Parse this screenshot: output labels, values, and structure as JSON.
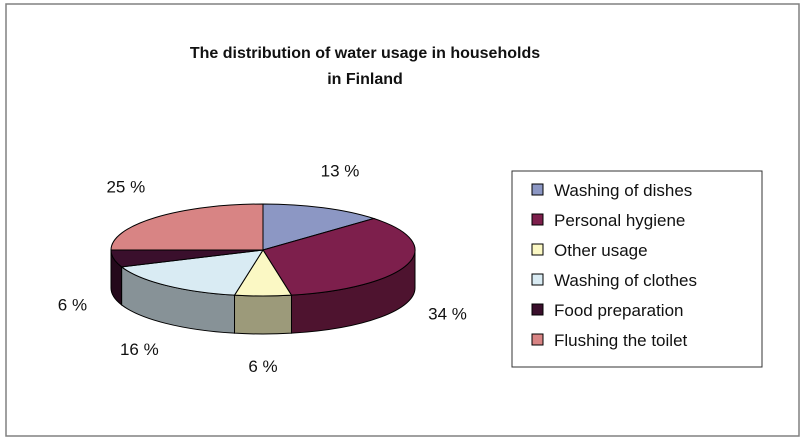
{
  "chart_data": {
    "type": "pie",
    "title_lines": [
      "The distribution of water usage in households",
      "in Finland"
    ],
    "slices": [
      {
        "name": "Washing of dishes",
        "value": 13,
        "label": "13 %",
        "color": "#8c97c4"
      },
      {
        "name": "Personal hygiene",
        "value": 34,
        "label": "34 %",
        "color": "#7d1f4c"
      },
      {
        "name": "Other usage",
        "value": 6,
        "label": "6 %",
        "color": "#fbf8c4"
      },
      {
        "name": "Washing of clothes",
        "value": 16,
        "label": "16 %",
        "color": "#d9ebf3"
      },
      {
        "name": "Food preparation",
        "value": 6,
        "label": "6 %",
        "color": "#3a0f2c"
      },
      {
        "name": "Flushing the toilet",
        "value": 25,
        "label": "25 %",
        "color": "#d88484"
      }
    ],
    "legend_position": "right",
    "style": "3d"
  }
}
